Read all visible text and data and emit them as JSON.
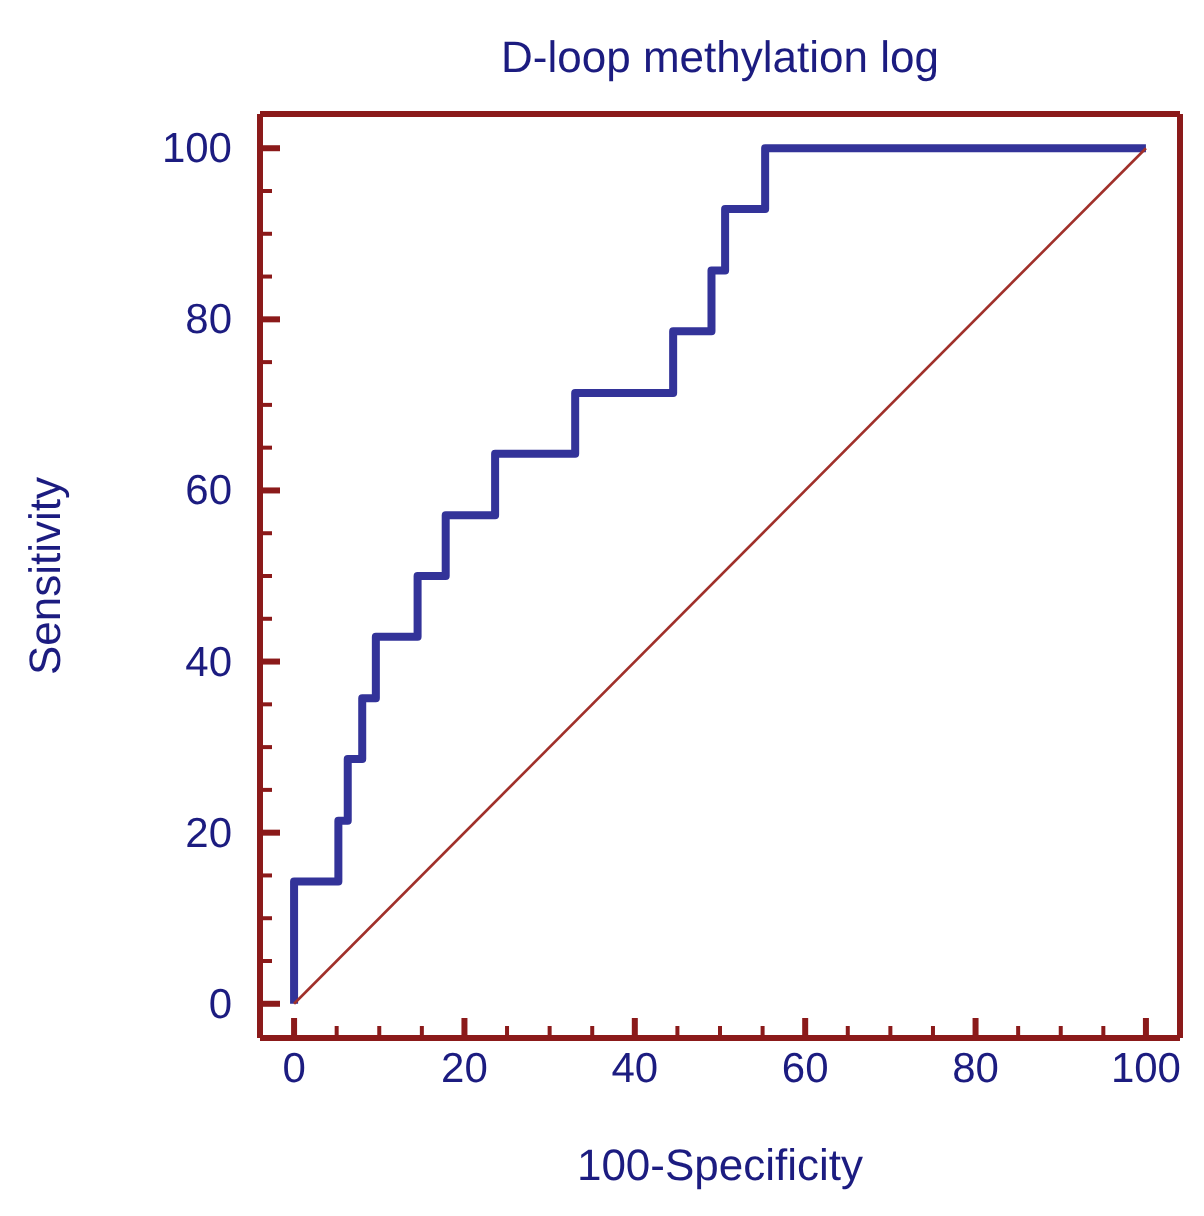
{
  "chart_data": {
    "type": "step",
    "title": "D-loop methylation log",
    "xlabel": "100-Specificity",
    "ylabel": "Sensitivity",
    "series": [
      {
        "color": "#333399",
        "x": [
          0,
          0,
          5.2,
          6.3,
          8,
          9.6,
          14.5,
          17.8,
          23.6,
          33,
          44.5,
          49,
          50.6,
          55.3,
          100
        ],
        "values": [
          0,
          14.3,
          21.4,
          28.6,
          35.7,
          42.9,
          50,
          57.1,
          64.3,
          71.4,
          78.6,
          85.7,
          92.9,
          100,
          100
        ]
      },
      {
        "type": "line",
        "color": "#a0302a",
        "x": [
          0,
          100
        ],
        "values": [
          0,
          100
        ]
      }
    ],
    "xlim": [
      -4,
      104
    ],
    "ylim": [
      -4,
      104
    ],
    "xticks": [
      0,
      {
        "value": 5,
        "label": null
      },
      {
        "value": 10,
        "label": null
      },
      {
        "value": 15,
        "label": null
      },
      20,
      {
        "value": 25,
        "label": null
      },
      {
        "value": 30,
        "label": null
      },
      {
        "value": 35,
        "label": null
      },
      40,
      {
        "value": 45,
        "label": null
      },
      {
        "value": 50,
        "label": null
      },
      {
        "value": 55,
        "label": null
      },
      60,
      {
        "value": 65,
        "label": null
      },
      {
        "value": 70,
        "label": null
      },
      {
        "value": 75,
        "label": null
      },
      80,
      {
        "value": 85,
        "label": null
      },
      {
        "value": 90,
        "label": null
      },
      {
        "value": 95,
        "label": null
      },
      100
    ],
    "yticks": [
      0,
      {
        "value": 5,
        "label": null
      },
      {
        "value": 10,
        "label": null
      },
      {
        "value": 15,
        "label": null
      },
      20,
      {
        "value": 25,
        "label": null
      },
      {
        "value": 30,
        "label": null
      },
      {
        "value": 35,
        "label": null
      },
      40,
      {
        "value": 45,
        "label": null
      },
      {
        "value": 50,
        "label": null
      },
      {
        "value": 55,
        "label": null
      },
      60,
      {
        "value": 65,
        "label": null
      },
      {
        "value": 70,
        "label": null
      },
      {
        "value": 75,
        "label": null
      },
      80,
      {
        "value": 85,
        "label": null
      },
      {
        "value": 90,
        "label": null
      },
      {
        "value": 95,
        "label": null
      },
      100
    ],
    "grid": false,
    "legend": false,
    "marker": "none",
    "line_style": "solid"
  }
}
